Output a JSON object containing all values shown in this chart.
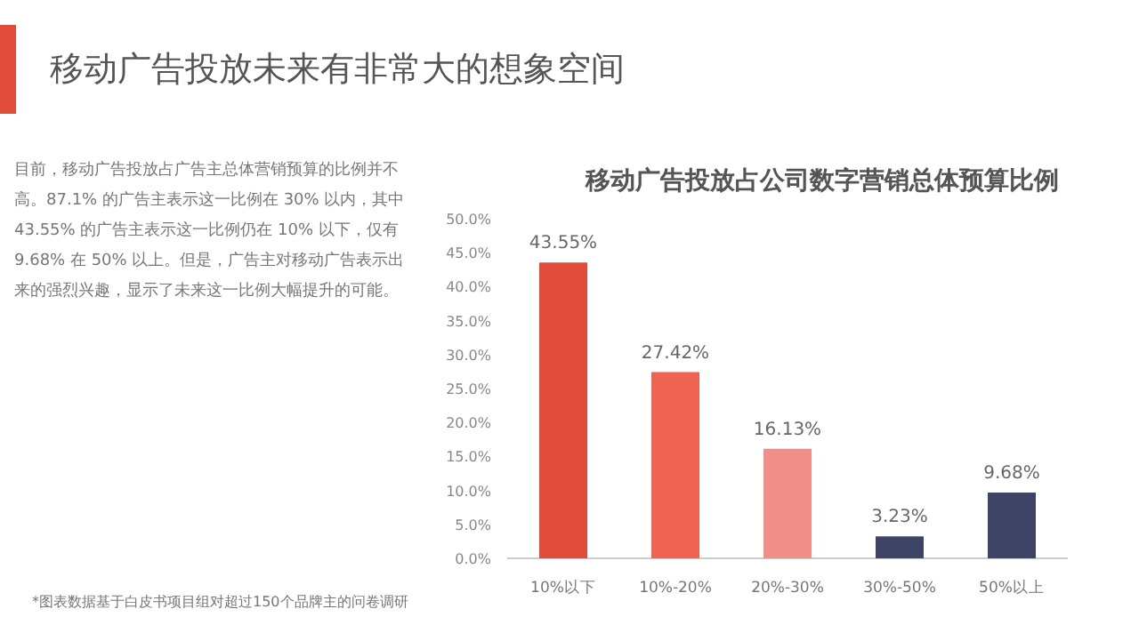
{
  "chart_data": {
    "type": "bar",
    "title": "移动广告投放未来有非常大的想象空间",
    "subtitle": "移动广告投放占公司数字营销总体预算比例",
    "categories": [
      "10%以下",
      "10%-20%",
      "20%-30%",
      "30%-50%",
      "50%以上"
    ],
    "values": [
      43.55,
      27.42,
      16.13,
      3.23,
      9.68
    ],
    "colors": [
      "#e04b3a",
      "#ef6352",
      "#f28e88",
      "#3d4466",
      "#3d4466"
    ],
    "value_labels": [
      "43.55%",
      "27.42%",
      "16.13%",
      "3.23%",
      "9.68%"
    ],
    "ylim": [
      0,
      50
    ],
    "yticks": [
      {
        "value": 0,
        "label": "0.0%"
      },
      {
        "value": 5,
        "label": "5.0%"
      },
      {
        "value": 10,
        "label": "10.0%"
      },
      {
        "value": 15,
        "label": "15.0%"
      },
      {
        "value": 20,
        "label": "20.0%"
      },
      {
        "value": 25,
        "label": "25.0%"
      },
      {
        "value": 30,
        "label": "30.0%"
      },
      {
        "value": 35,
        "label": "35.0%"
      },
      {
        "value": 40,
        "label": "40.0%"
      },
      {
        "value": 45,
        "label": "45.0%"
      },
      {
        "value": 50,
        "label": "50.0%"
      }
    ],
    "grid": false,
    "annotations": [
      "目前，移动广告投放占广告主总体营销预算的比例并不高。87.1% 的广告主表示这一比例在 30% 以内，其中 43.55% 的广告主表示这一比例仍在 10% 以下，仅有 9.68% 在 50% 以上。但是，广告主对移动广告表示出来的强烈兴趣，显示了未来这一比例大幅提升的可能。",
      "*图表数据基于白皮书项目组对超过150个品牌主的问卷调研"
    ]
  }
}
